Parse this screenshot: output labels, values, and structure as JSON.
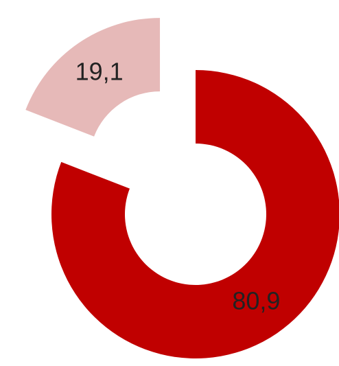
{
  "chart_data": {
    "type": "donut",
    "categories": [
      null,
      null
    ],
    "values": [
      80.9,
      19.1
    ],
    "value_labels": [
      "80,9",
      "19,1"
    ],
    "colors": [
      "#c00000",
      "#e6b9b8"
    ],
    "exploded": [
      false,
      true
    ]
  }
}
